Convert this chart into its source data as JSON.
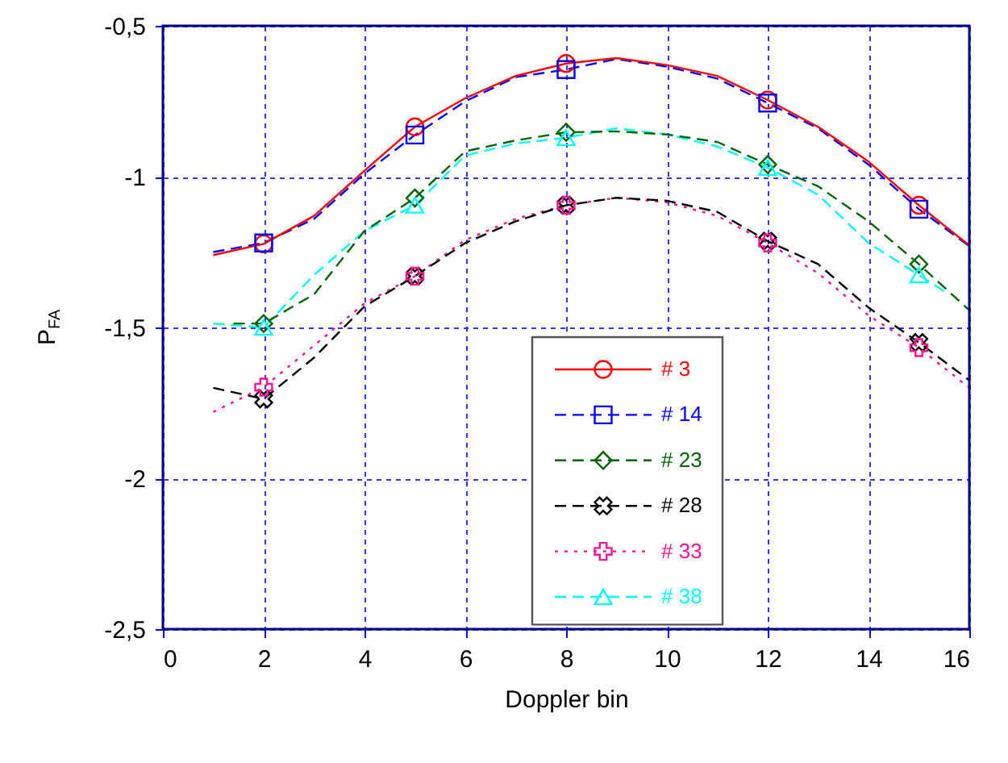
{
  "chart_data": {
    "type": "line",
    "xlabel": "Doppler bin",
    "ylabel": "P$_{FA}$",
    "x": [
      1,
      2,
      3,
      4,
      5,
      6,
      7,
      8,
      9,
      10,
      11,
      12,
      13,
      14,
      15,
      16
    ],
    "xlim": [
      0,
      16
    ],
    "xticks": [
      0,
      2,
      4,
      6,
      8,
      10,
      12,
      14,
      16
    ],
    "ylim": [
      -2.5,
      -0.5
    ],
    "yticks": [
      {
        "value": -2.5,
        "label": "-2,5"
      },
      {
        "value": -2,
        "label": "-2"
      },
      {
        "value": -1.5,
        "label": "-1,5"
      },
      {
        "value": -1,
        "label": "-1"
      },
      {
        "value": -0.5,
        "label": "-0,5"
      }
    ],
    "grid": true,
    "legend": "bottom",
    "marker": "none",
    "series": [
      {
        "name": "# 3",
        "color": "#ff0000",
        "line_style": "solid",
        "values": [
          -1.26,
          -1.223,
          -1.13,
          -0.98,
          -0.835,
          -0.74,
          -0.666,
          -0.625,
          -0.607,
          -0.63,
          -0.666,
          -0.746,
          -0.835,
          -0.95,
          -1.095,
          -1.228
        ]
      },
      {
        "name": "# 14",
        "color": "#0000ff",
        "line_style": "dashed",
        "values": [
          -1.25,
          -1.22,
          -1.14,
          -0.99,
          -0.862,
          -0.75,
          -0.67,
          -0.645,
          -0.61,
          -0.635,
          -0.675,
          -0.756,
          -0.84,
          -0.96,
          -1.108,
          -1.23
        ]
      },
      {
        "name": "# 23",
        "color": "#006400",
        "line_style": "dashed",
        "x": [
          1.4,
          2,
          3,
          4,
          5,
          6,
          7,
          8,
          9,
          10,
          11,
          12,
          13,
          14,
          15,
          16
        ],
        "values": [
          -1.487,
          -1.487,
          -1.39,
          -1.18,
          -1.071,
          -0.916,
          -0.88,
          -0.853,
          -0.85,
          -0.86,
          -0.885,
          -0.96,
          -1.032,
          -1.148,
          -1.29,
          -1.443
        ]
      },
      {
        "name": "# 28",
        "color": "#000000",
        "line_style": "dashed",
        "values": [
          -1.7,
          -1.737,
          -1.6,
          -1.43,
          -1.33,
          -1.22,
          -1.148,
          -1.095,
          -1.07,
          -1.08,
          -1.117,
          -1.214,
          -1.29,
          -1.434,
          -1.55,
          -1.675
        ]
      },
      {
        "name": "# 33",
        "color": "#ff1493",
        "line_style": "dotted",
        "values": [
          -1.78,
          -1.698,
          -1.56,
          -1.42,
          -1.33,
          -1.21,
          -1.14,
          -1.095,
          -1.07,
          -1.085,
          -1.13,
          -1.22,
          -1.32,
          -1.46,
          -1.567,
          -1.7
        ]
      },
      {
        "name": "# 38",
        "color": "#00ffff",
        "line_style": "dashed",
        "x": [
          1,
          2,
          3,
          4,
          5,
          6,
          7,
          8,
          9,
          10,
          11,
          12,
          13,
          14,
          15,
          15.5
        ],
        "values": [
          -1.487,
          -1.5,
          -1.326,
          -1.18,
          -1.095,
          -0.93,
          -0.89,
          -0.871,
          -0.84,
          -0.86,
          -0.9,
          -0.97,
          -1.06,
          -1.22,
          -1.326,
          -1.38
        ]
      },
      {
        "type": "scatter",
        "marker": "circle",
        "color": "#ff0000",
        "x": [
          2,
          5,
          8,
          12,
          15
        ],
        "values": [
          -1.223,
          -0.835,
          -0.625,
          -0.746,
          -1.095
        ]
      },
      {
        "type": "scatter",
        "marker": "square",
        "color": "#0000ff",
        "x": [
          2,
          5,
          8,
          12,
          15
        ],
        "values": [
          -1.22,
          -0.862,
          -0.645,
          -0.756,
          -1.108
        ]
      },
      {
        "type": "scatter",
        "marker": "diamond",
        "color": "#006400",
        "x": [
          2,
          5,
          8,
          12,
          15
        ],
        "values": [
          -1.487,
          -1.071,
          -0.853,
          -0.96,
          -1.29
        ]
      },
      {
        "type": "scatter",
        "marker": "cross",
        "color": "#000000",
        "x": [
          2,
          5,
          8,
          12,
          15
        ],
        "values": [
          -1.737,
          -1.33,
          -1.095,
          -1.214,
          -1.55
        ]
      },
      {
        "type": "scatter",
        "marker": "plus",
        "color": "#ff1493",
        "x": [
          2,
          5,
          8,
          12,
          15
        ],
        "values": [
          -1.698,
          -1.33,
          -1.095,
          -1.22,
          -1.567
        ]
      },
      {
        "type": "scatter",
        "marker": "triangle",
        "color": "#00ffff",
        "x": [
          2,
          5,
          8,
          12,
          15
        ],
        "values": [
          -1.5,
          -1.095,
          -0.871,
          -0.97,
          -1.326
        ]
      }
    ]
  }
}
